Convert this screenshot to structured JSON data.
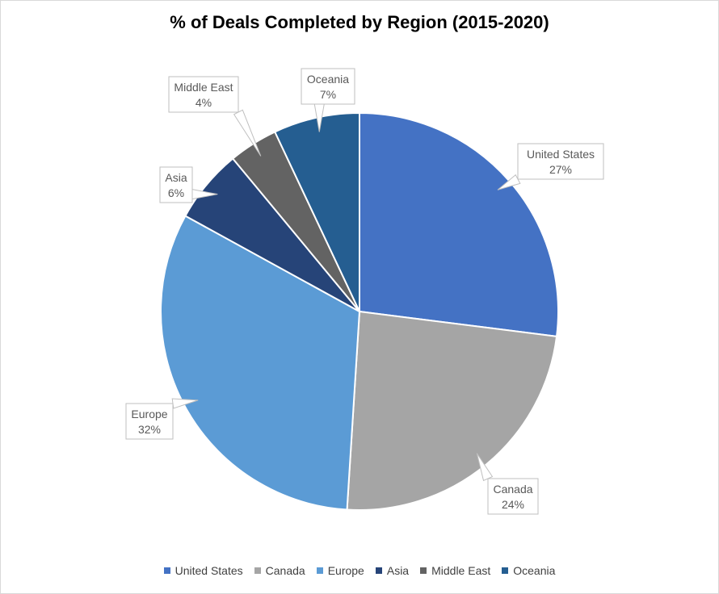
{
  "chart_data": {
    "type": "pie",
    "title": "% of Deals Completed by Region (2015-2020)",
    "categories": [
      "United States",
      "Canada",
      "Europe",
      "Asia",
      "Middle East",
      "Oceania"
    ],
    "values": [
      27,
      24,
      32,
      6,
      4,
      7
    ],
    "labels": [
      "27%",
      "24%",
      "32%",
      "6%",
      "4%",
      "7%"
    ],
    "colors": [
      "#4472C4",
      "#A5A5A5",
      "#5B9BD5",
      "#264478",
      "#636363",
      "#255E91"
    ],
    "legend_position": "bottom",
    "data_labels": "callouts"
  }
}
